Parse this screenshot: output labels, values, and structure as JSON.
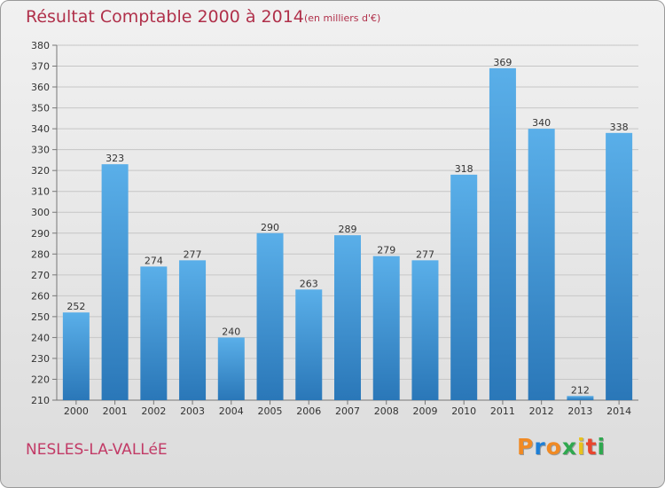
{
  "title": "Résultat Comptable 2000 à 2014",
  "unit": "(en milliers d'€)",
  "commune": "NESLES-LA-VALLéE",
  "brand": "Proxiti",
  "colors": {
    "title": "#b0304a",
    "bar_top": "#5aafe9",
    "bar_bottom": "#2a77b8",
    "brand_letters": [
      "#f08a24",
      "#1e7fd6",
      "#f08a24",
      "#2fa84f",
      "#e8c21c",
      "#e8462e",
      "#2fa84f"
    ]
  },
  "chart_data": {
    "type": "bar",
    "categories": [
      "2000",
      "2001",
      "2002",
      "2003",
      "2004",
      "2005",
      "2006",
      "2007",
      "2008",
      "2009",
      "2010",
      "2011",
      "2012",
      "2013",
      "2014"
    ],
    "values": [
      252,
      323,
      274,
      277,
      240,
      290,
      263,
      289,
      279,
      277,
      318,
      369,
      340,
      212,
      338
    ],
    "ylim": [
      210,
      380
    ],
    "yticks": [
      210,
      220,
      230,
      240,
      250,
      260,
      270,
      280,
      290,
      300,
      310,
      320,
      330,
      340,
      350,
      360,
      370,
      380
    ],
    "grid": true,
    "xlabel": "",
    "ylabel": ""
  }
}
